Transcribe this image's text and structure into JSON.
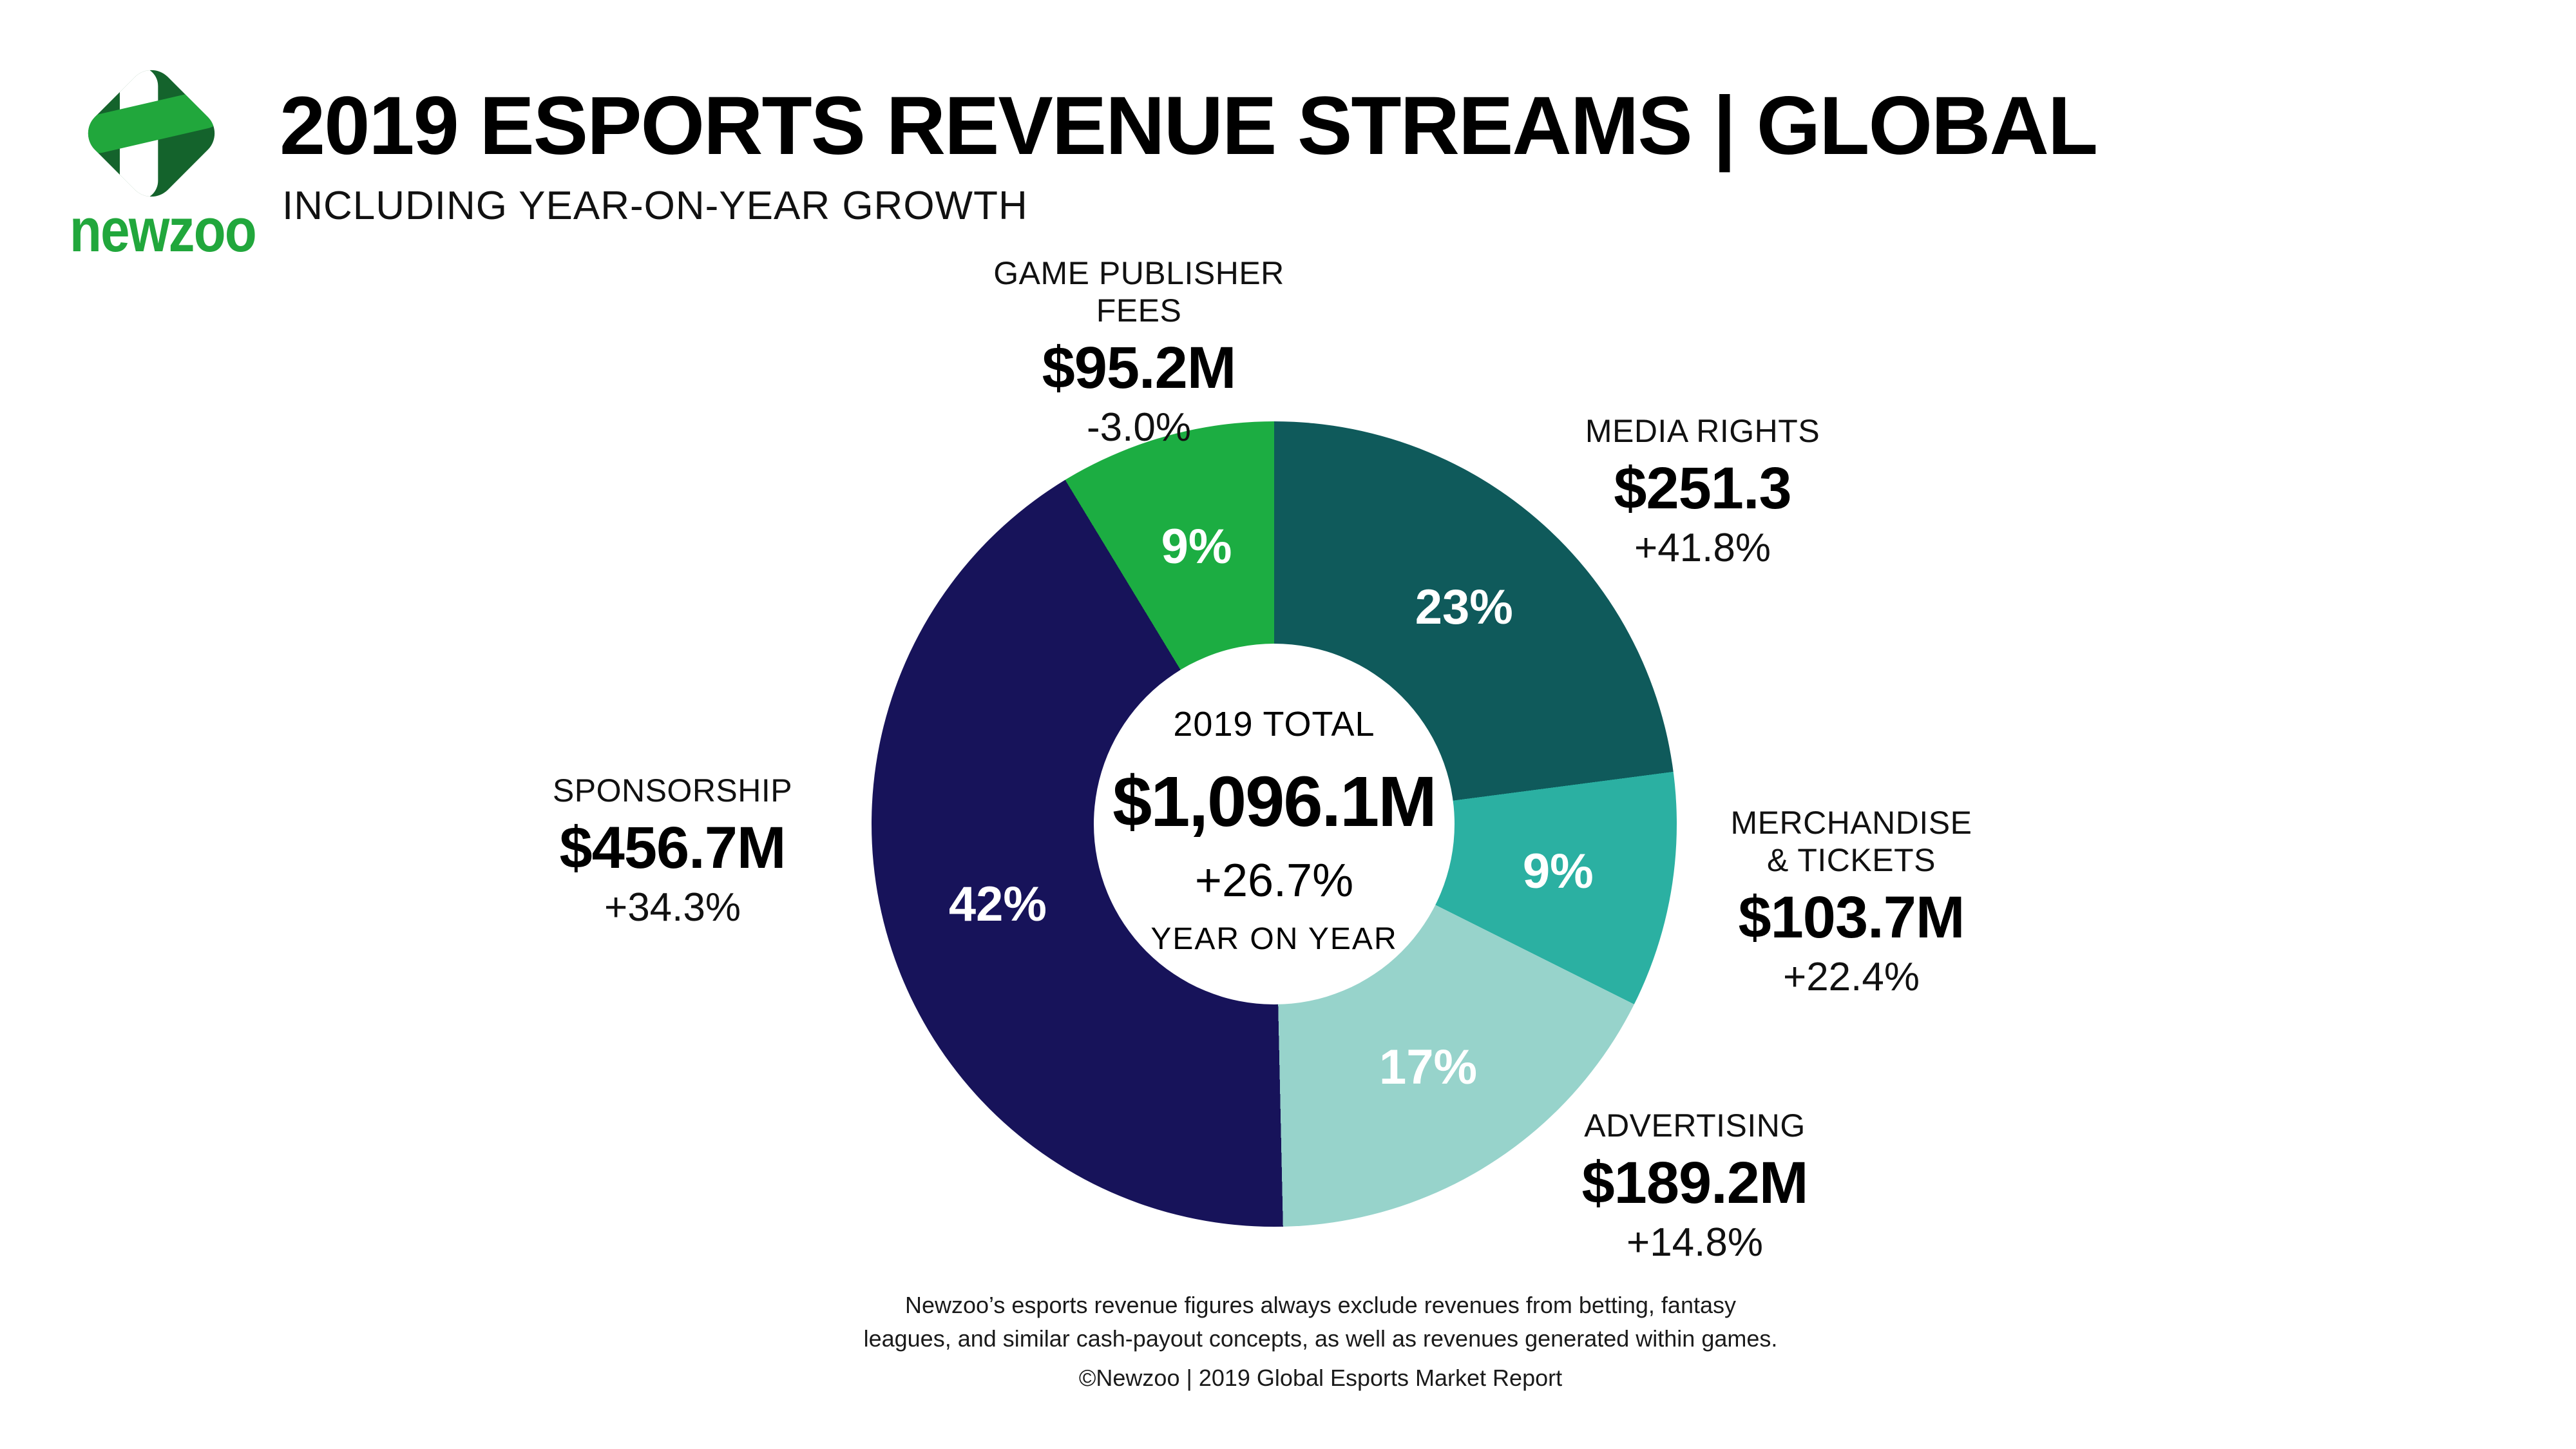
{
  "brand": {
    "logo_dark_green": "#14632C",
    "logo_green": "#21A73C"
  },
  "header": {
    "logo_wordmark": "newzoo",
    "title": "2019 ESPORTS REVENUE STREAMS | GLOBAL",
    "subtitle": "INCLUDING YEAR-ON-YEAR GROWTH"
  },
  "chart_data": {
    "type": "pie",
    "donut": true,
    "title": "2019 Esports Revenue Streams | Global",
    "subtitle": "Including year-on-year growth",
    "units": "USD millions",
    "start_angle_deg": 0,
    "direction": "clockwise",
    "legend_position": "callout-labels",
    "total_label": "2019 TOTAL",
    "total_value_label": "$1,096.1M",
    "total_value": 1096.1,
    "total_growth": "+26.7%",
    "total_growth_sublabel": "YEAR ON YEAR",
    "segments": [
      {
        "id": "media-rights",
        "name": "MEDIA RIGHTS",
        "value": 251.3,
        "value_label": "$251.3",
        "growth": "+41.8%",
        "share_pct": 23,
        "share_label": "23%",
        "color": "#0F5A5B"
      },
      {
        "id": "merchandise-tickets",
        "name": "MERCHANDISE\n& TICKETS",
        "value": 103.7,
        "value_label": "$103.7M",
        "growth": "+22.4%",
        "share_pct": 9,
        "share_label": "9%",
        "color": "#2BB0A2"
      },
      {
        "id": "advertising",
        "name": "ADVERTISING",
        "value": 189.2,
        "value_label": "$189.2M",
        "growth": "+14.8%",
        "share_pct": 17,
        "share_label": "17%",
        "color": "#97D3CB"
      },
      {
        "id": "sponsorship",
        "name": "SPONSORSHIP",
        "value": 456.7,
        "value_label": "$456.7M",
        "growth": "+34.3%",
        "share_pct": 42,
        "share_label": "42%",
        "color": "#17135A"
      },
      {
        "id": "game-publisher-fees",
        "name": "GAME PUBLISHER\nFEES",
        "value": 95.2,
        "value_label": "$95.2M",
        "growth": "-3.0%",
        "share_pct": 9,
        "share_label": "9%",
        "color": "#1CAD42"
      }
    ]
  },
  "footer": {
    "note": "Newzoo’s esports revenue figures always exclude revenues from betting, fantasy\nleagues, and similar cash-payout concepts, as well as revenues generated within games.",
    "copyright": "©Newzoo | 2019 Global Esports Market Report"
  }
}
